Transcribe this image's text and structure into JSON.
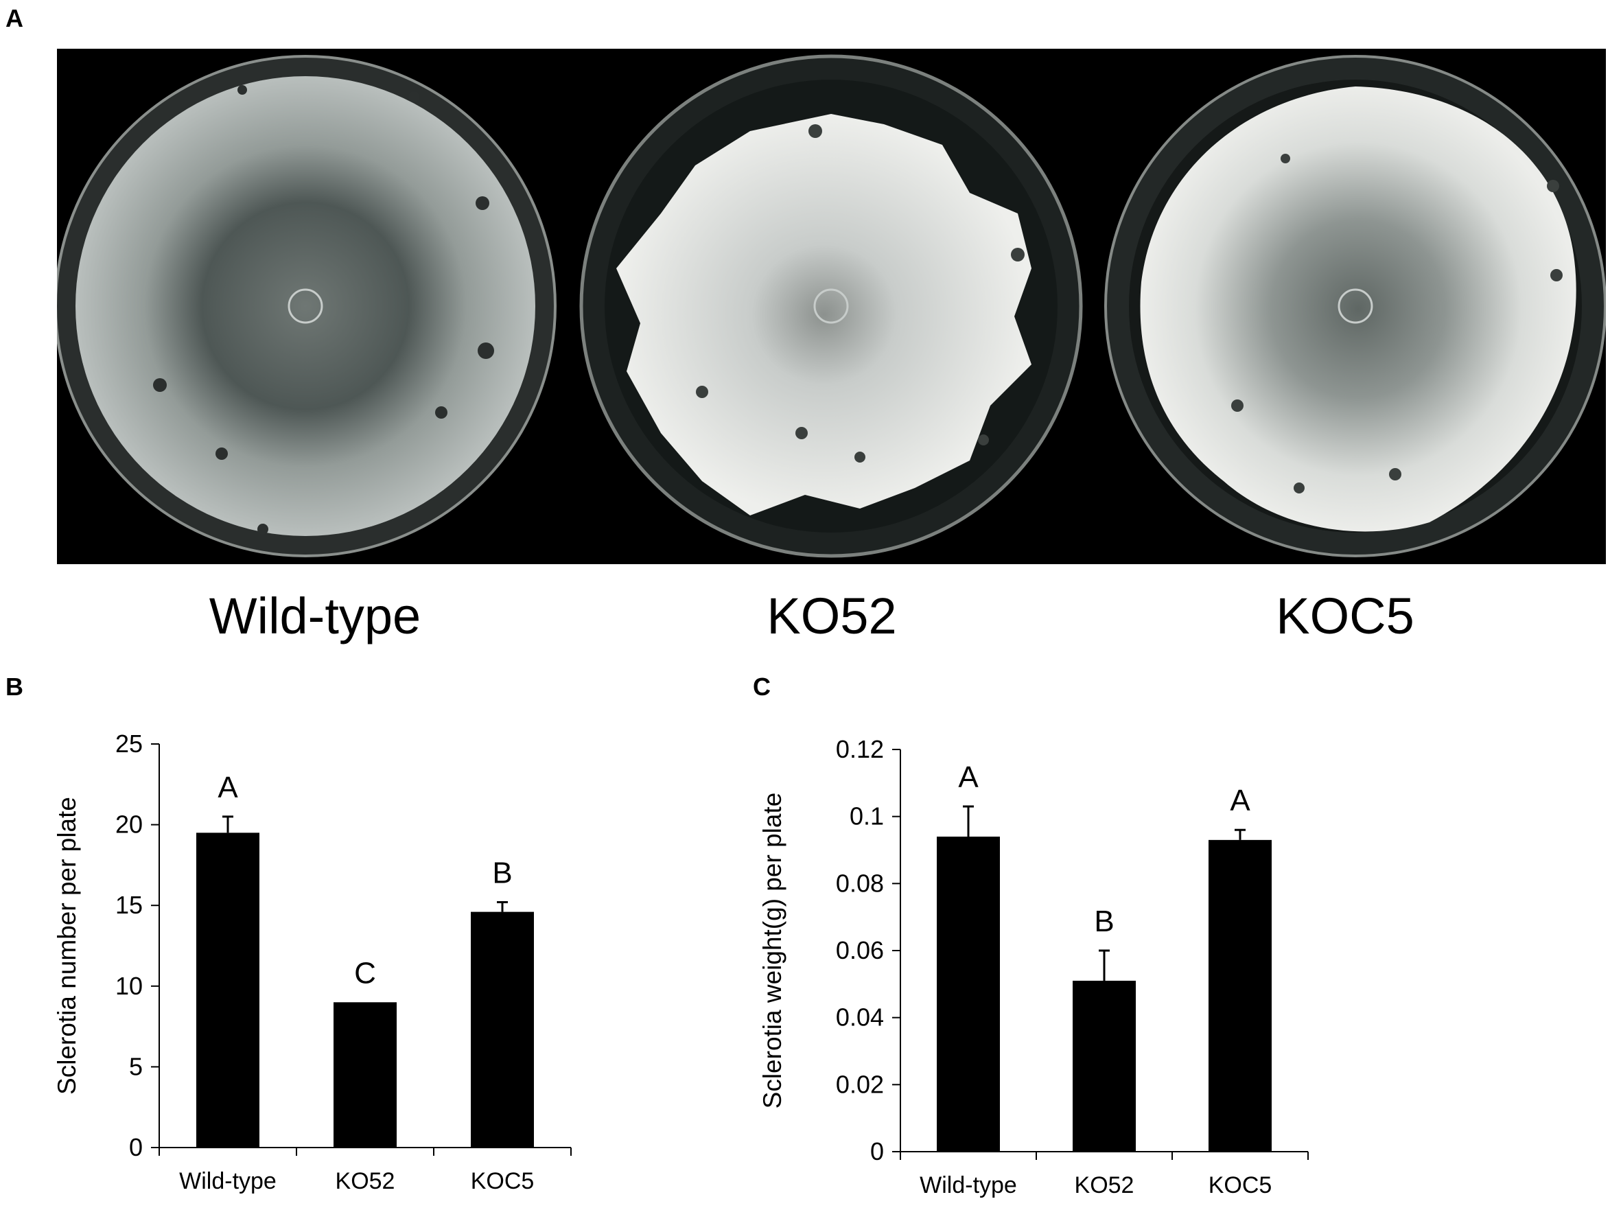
{
  "figure": {
    "panel_labels": {
      "a": "A",
      "b": "B",
      "c": "C"
    },
    "photo_panel": {
      "plates": [
        {
          "label": "Wild-type",
          "colony": "sparse",
          "tint": "#8d9694"
        },
        {
          "label": "KO52",
          "colony": "lobed-white",
          "tint": "#c9cdc9"
        },
        {
          "label": "KOC5",
          "colony": "dense-white",
          "tint": "#b6bbb8"
        }
      ]
    }
  },
  "chart_data": [
    {
      "type": "bar",
      "panel": "B",
      "categories": [
        "Wild-type",
        "KO52",
        "KOC5"
      ],
      "values": [
        19.5,
        9.0,
        14.6
      ],
      "errors": [
        1.0,
        0.0,
        0.6
      ],
      "significance_letters": [
        "A",
        "C",
        "B"
      ],
      "ylabel": "Sclerotia  number per plate",
      "ylim": [
        0,
        25
      ],
      "yticks": [
        0,
        5,
        10,
        15,
        20,
        25
      ],
      "ytick_labels": [
        "0",
        "5",
        "10",
        "15",
        "20",
        "25"
      ],
      "bar_color": "#000000",
      "grid": false
    },
    {
      "type": "bar",
      "panel": "C",
      "categories": [
        "Wild-type",
        "KO52",
        "KOC5"
      ],
      "values": [
        0.094,
        0.051,
        0.093
      ],
      "errors": [
        0.009,
        0.009,
        0.003
      ],
      "significance_letters": [
        "A",
        "B",
        "A"
      ],
      "ylabel": "Sclerotia  weight(g) per plate",
      "ylim": [
        0,
        0.12
      ],
      "yticks": [
        0,
        0.02,
        0.04,
        0.06,
        0.08,
        0.1,
        0.12
      ],
      "ytick_labels": [
        "0",
        "0.02",
        "0.04",
        "0.06",
        "0.08",
        "0.1",
        "0.12"
      ],
      "bar_color": "#000000",
      "grid": false
    }
  ]
}
